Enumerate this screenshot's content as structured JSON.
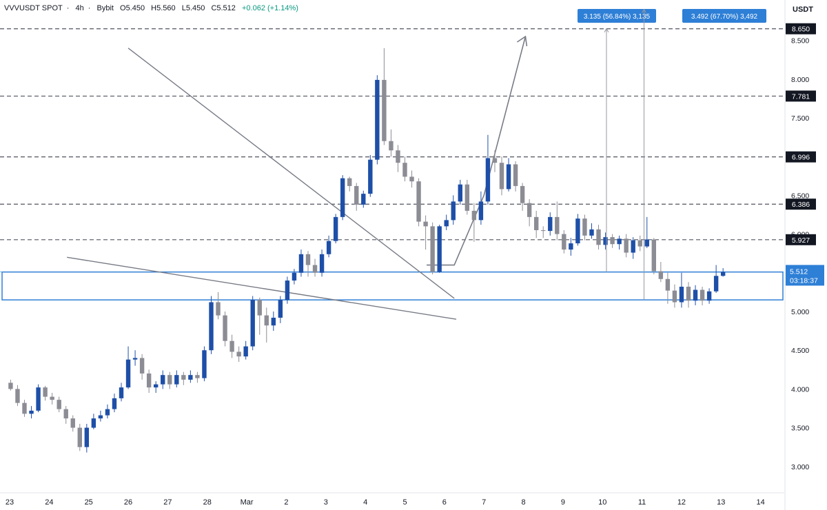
{
  "header": {
    "symbol": "VVVUSDT SPOT",
    "timeframe": "4h",
    "exchange": "Bybit",
    "open": "O5.450",
    "high": "H5.560",
    "low": "L5.450",
    "close": "C5.512",
    "change": "+0.062 (+1.14%)"
  },
  "price_axis_unit": "USDT",
  "colors": {
    "up": "#1e4fa8",
    "down": "#8c8c94",
    "line": "#787b86",
    "box": "#2e7fd6",
    "label_dark": "#131722",
    "label_blue": "#2e7fd6"
  },
  "chart_data": {
    "type": "candlestick",
    "x_ticks": [
      "23",
      "24",
      "25",
      "26",
      "27",
      "28",
      "Mar",
      "2",
      "3",
      "4",
      "5",
      "6",
      "7",
      "8",
      "9",
      "10",
      "11",
      "12",
      "13",
      "14"
    ],
    "y_ticks": [
      "3.000",
      "3.500",
      "4.000",
      "4.500",
      "5.000",
      "5.500",
      "6.000",
      "6.500",
      "7.000",
      "7.500",
      "8.000",
      "8.500"
    ],
    "ylim": [
      2.4,
      8.9
    ],
    "levels": [
      8.65,
      7.781,
      6.996,
      6.386,
      5.927
    ],
    "level_labels": [
      "8.650",
      "7.781",
      "6.996",
      "6.386",
      "5.927"
    ],
    "current_price": "5.512",
    "countdown": "03:18:37",
    "current_price_value": 5.512,
    "support_zone": [
      5.15,
      5.51
    ],
    "measure_labels": [
      "3.135 (56.84%) 3,135",
      "3.492 (67.70%) 3,492"
    ],
    "measure_targets": [
      8.65,
      8.9
    ],
    "upper_trendline": [
      [
        3.0,
        8.4
      ],
      [
        11.25,
        5.17
      ]
    ],
    "lower_trendline": [
      [
        1.45,
        5.7
      ],
      [
        11.3,
        4.9
      ]
    ],
    "projection_path": [
      [
        10.55,
        5.6
      ],
      [
        11.25,
        5.6
      ],
      [
        12.0,
        6.5
      ],
      [
        13.05,
        8.55
      ]
    ],
    "candles": [
      [
        -0.3,
        4.08,
        4.0,
        4.12,
        3.98
      ],
      [
        -0.2,
        4.0,
        3.82,
        4.05,
        3.78
      ],
      [
        -0.1,
        3.82,
        3.68,
        3.86,
        3.64
      ],
      [
        0.0,
        3.68,
        3.72,
        3.78,
        3.62
      ],
      [
        0.1,
        3.72,
        4.02,
        4.06,
        3.7
      ],
      [
        0.2,
        4.02,
        3.9,
        4.04,
        3.85
      ],
      [
        0.3,
        3.9,
        3.86,
        3.95,
        3.8
      ],
      [
        0.4,
        3.86,
        3.74,
        3.9,
        3.7
      ],
      [
        0.5,
        3.74,
        3.62,
        3.78,
        3.55
      ],
      [
        0.6,
        3.62,
        3.5,
        3.66,
        3.45
      ],
      [
        0.7,
        3.5,
        3.25,
        3.55,
        3.2
      ],
      [
        0.8,
        3.25,
        3.5,
        3.55,
        3.18
      ],
      [
        0.9,
        3.5,
        3.62,
        3.68,
        3.48
      ],
      [
        1.0,
        3.62,
        3.66,
        3.72,
        3.58
      ],
      [
        1.1,
        3.66,
        3.74,
        3.8,
        3.62
      ],
      [
        1.2,
        3.74,
        3.88,
        3.94,
        3.7
      ],
      [
        1.3,
        3.88,
        4.02,
        4.08,
        3.84
      ],
      [
        1.4,
        4.02,
        4.38,
        4.55,
        4.0
      ],
      [
        1.5,
        4.38,
        4.4,
        4.5,
        4.3
      ],
      [
        1.6,
        4.4,
        4.2,
        4.45,
        4.12
      ],
      [
        1.7,
        4.2,
        4.02,
        4.25,
        3.95
      ],
      [
        1.8,
        4.02,
        4.06,
        4.1,
        3.95
      ],
      [
        1.9,
        4.06,
        4.18,
        4.24,
        4.0
      ],
      [
        2.0,
        4.18,
        4.06,
        4.22,
        4.0
      ],
      [
        2.1,
        4.06,
        4.18,
        4.24,
        4.02
      ],
      [
        2.2,
        4.18,
        4.12,
        4.22,
        4.05
      ],
      [
        2.3,
        4.12,
        4.18,
        4.24,
        4.08
      ],
      [
        2.4,
        4.18,
        4.14,
        4.22,
        4.08
      ],
      [
        2.5,
        4.14,
        4.5,
        4.55,
        4.1
      ],
      [
        2.6,
        4.5,
        5.12,
        5.2,
        4.45
      ],
      [
        2.7,
        5.12,
        4.95,
        5.25,
        4.9
      ],
      [
        2.8,
        4.95,
        4.62,
        5.0,
        4.55
      ],
      [
        2.9,
        4.62,
        4.48,
        4.7,
        4.4
      ],
      [
        3.0,
        4.48,
        4.42,
        4.55,
        4.35
      ],
      [
        3.1,
        4.42,
        4.55,
        4.62,
        4.38
      ],
      [
        3.2,
        4.55,
        5.15,
        5.2,
        4.5
      ],
      [
        3.3,
        5.15,
        4.95,
        5.18,
        4.7
      ],
      [
        3.4,
        4.95,
        4.82,
        5.05,
        4.6
      ],
      [
        3.5,
        4.82,
        4.92,
        5.0,
        4.75
      ],
      [
        3.6,
        4.92,
        5.15,
        5.2,
        4.85
      ],
      [
        3.7,
        5.15,
        5.4,
        5.45,
        5.1
      ],
      [
        3.8,
        5.4,
        5.5,
        5.55,
        5.35
      ],
      [
        3.9,
        5.5,
        5.74,
        5.8,
        5.45
      ],
      [
        4.0,
        5.74,
        5.6,
        5.78,
        5.45
      ],
      [
        4.1,
        5.6,
        5.5,
        5.68,
        5.45
      ],
      [
        4.2,
        5.5,
        5.74,
        5.8,
        5.45
      ],
      [
        4.3,
        5.74,
        5.91,
        5.98,
        5.7
      ],
      [
        4.4,
        5.91,
        6.22,
        6.26,
        5.88
      ],
      [
        4.5,
        6.22,
        6.72,
        6.76,
        6.18
      ],
      [
        4.6,
        6.72,
        6.62,
        6.74,
        6.55
      ],
      [
        4.7,
        6.62,
        6.38,
        6.66,
        6.3
      ],
      [
        4.8,
        6.38,
        6.52,
        6.56,
        6.34
      ],
      [
        4.9,
        6.52,
        6.96,
        7.02,
        6.48
      ],
      [
        5.0,
        6.96,
        7.99,
        8.05,
        6.9
      ],
      [
        5.1,
        7.99,
        7.2,
        8.4,
        7.15
      ],
      [
        5.2,
        7.2,
        7.08,
        7.35,
        7.0
      ],
      [
        5.3,
        7.08,
        6.92,
        7.15,
        6.8
      ],
      [
        5.4,
        6.92,
        6.74,
        7.0,
        6.68
      ],
      [
        5.5,
        6.74,
        6.68,
        6.82,
        6.6
      ],
      [
        5.6,
        6.68,
        6.16,
        6.72,
        6.1
      ],
      [
        5.7,
        6.16,
        6.1,
        6.24,
        5.8
      ],
      [
        5.8,
        6.1,
        5.51,
        6.15,
        5.48
      ],
      [
        5.9,
        5.51,
        6.1,
        6.12,
        5.5
      ],
      [
        6.0,
        6.1,
        6.18,
        6.25,
        6.05
      ],
      [
        6.1,
        6.18,
        6.42,
        6.5,
        6.12
      ],
      [
        6.2,
        6.42,
        6.64,
        6.7,
        6.38
      ],
      [
        6.3,
        6.64,
        6.3,
        6.7,
        6.25
      ],
      [
        6.4,
        6.3,
        6.18,
        6.4,
        5.9
      ],
      [
        6.5,
        6.18,
        6.42,
        6.55,
        6.12
      ],
      [
        6.6,
        6.42,
        6.98,
        7.28,
        6.38
      ],
      [
        6.7,
        6.98,
        6.92,
        7.08,
        6.8
      ],
      [
        6.8,
        6.92,
        6.58,
        7.0,
        6.5
      ],
      [
        6.9,
        6.58,
        6.9,
        6.98,
        6.55
      ],
      [
        7.0,
        6.9,
        6.62,
        6.94,
        6.55
      ],
      [
        7.1,
        6.62,
        6.4,
        6.66,
        6.3
      ],
      [
        7.2,
        6.4,
        6.22,
        6.45,
        6.1
      ],
      [
        7.3,
        6.22,
        6.05,
        6.3,
        5.95
      ],
      [
        7.4,
        6.05,
        6.04,
        6.1,
        5.95
      ],
      [
        7.5,
        6.04,
        6.22,
        6.28,
        5.98
      ],
      [
        7.6,
        6.22,
        6.0,
        6.42,
        5.92
      ],
      [
        7.7,
        6.0,
        5.8,
        6.05,
        5.75
      ],
      [
        7.8,
        5.8,
        5.88,
        5.95,
        5.72
      ],
      [
        7.9,
        5.88,
        6.2,
        6.26,
        5.85
      ],
      [
        8.0,
        6.2,
        5.98,
        6.25,
        5.92
      ],
      [
        8.1,
        5.98,
        6.06,
        6.14,
        5.94
      ],
      [
        8.2,
        6.06,
        5.86,
        6.12,
        5.8
      ],
      [
        8.3,
        5.86,
        5.96,
        6.02,
        5.8
      ],
      [
        8.4,
        5.96,
        5.87,
        6.0,
        5.82
      ],
      [
        8.5,
        5.87,
        5.94,
        5.98,
        5.8
      ],
      [
        8.6,
        5.94,
        5.76,
        6.0,
        5.7
      ],
      [
        8.7,
        5.76,
        5.92,
        5.96,
        5.68
      ],
      [
        8.8,
        5.92,
        5.84,
        5.98,
        5.78
      ],
      [
        8.9,
        5.84,
        5.93,
        6.22,
        5.82
      ],
      [
        9.0,
        5.93,
        5.52,
        5.95,
        5.48
      ],
      [
        9.1,
        5.52,
        5.42,
        5.64,
        5.38
      ],
      [
        9.2,
        5.42,
        5.27,
        5.5,
        5.1
      ],
      [
        9.3,
        5.27,
        5.12,
        5.35,
        5.05
      ],
      [
        9.4,
        5.12,
        5.32,
        5.5,
        5.05
      ],
      [
        9.5,
        5.32,
        5.14,
        5.38,
        5.05
      ],
      [
        9.6,
        5.14,
        5.28,
        5.34,
        5.08
      ],
      [
        9.7,
        5.28,
        5.14,
        5.32,
        5.08
      ],
      [
        9.8,
        5.14,
        5.26,
        5.3,
        5.1
      ],
      [
        9.9,
        5.26,
        5.46,
        5.6,
        5.24
      ],
      [
        10.0,
        5.46,
        5.51,
        5.56,
        5.45
      ]
    ]
  }
}
